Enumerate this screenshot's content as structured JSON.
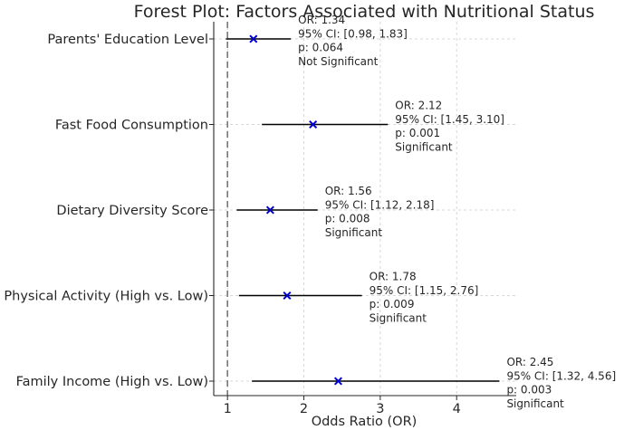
{
  "chart_data": {
    "type": "forest",
    "title": "Forest Plot: Factors Associated with Nutritional Status",
    "xlabel": "Odds Ratio (OR)",
    "xlim": [
      0.82,
      4.78
    ],
    "xticks": [
      "1",
      "2",
      "3",
      "4"
    ],
    "reference_line": 1,
    "grid": true,
    "marker_color": "#0000cc",
    "factors": [
      {
        "label": "Parents' Education Level",
        "or": 1.34,
        "ci": [
          0.98,
          1.83
        ],
        "annotation": [
          "OR: 1.34",
          "95% CI: [0.98, 1.83]",
          "p: 0.064",
          "Not Significant"
        ]
      },
      {
        "label": "Fast Food Consumption",
        "or": 2.12,
        "ci": [
          1.45,
          3.1
        ],
        "annotation": [
          "OR: 2.12",
          "95% CI: [1.45, 3.10]",
          "p: 0.001",
          "Significant"
        ]
      },
      {
        "label": "Dietary Diversity Score",
        "or": 1.56,
        "ci": [
          1.12,
          2.18
        ],
        "annotation": [
          "OR: 1.56",
          "95% CI: [1.12, 2.18]",
          "p: 0.008",
          "Significant"
        ]
      },
      {
        "label": "Physical Activity (High vs. Low)",
        "or": 1.78,
        "ci": [
          1.15,
          2.76
        ],
        "annotation": [
          "OR: 1.78",
          "95% CI: [1.15, 2.76]",
          "p: 0.009",
          "Significant"
        ]
      },
      {
        "label": "Family Income (High vs. Low)",
        "or": 2.45,
        "ci": [
          1.32,
          4.56
        ],
        "annotation": [
          "OR: 2.45",
          "95% CI: [1.32, 4.56]",
          "p: 0.003",
          "Significant"
        ]
      }
    ]
  }
}
